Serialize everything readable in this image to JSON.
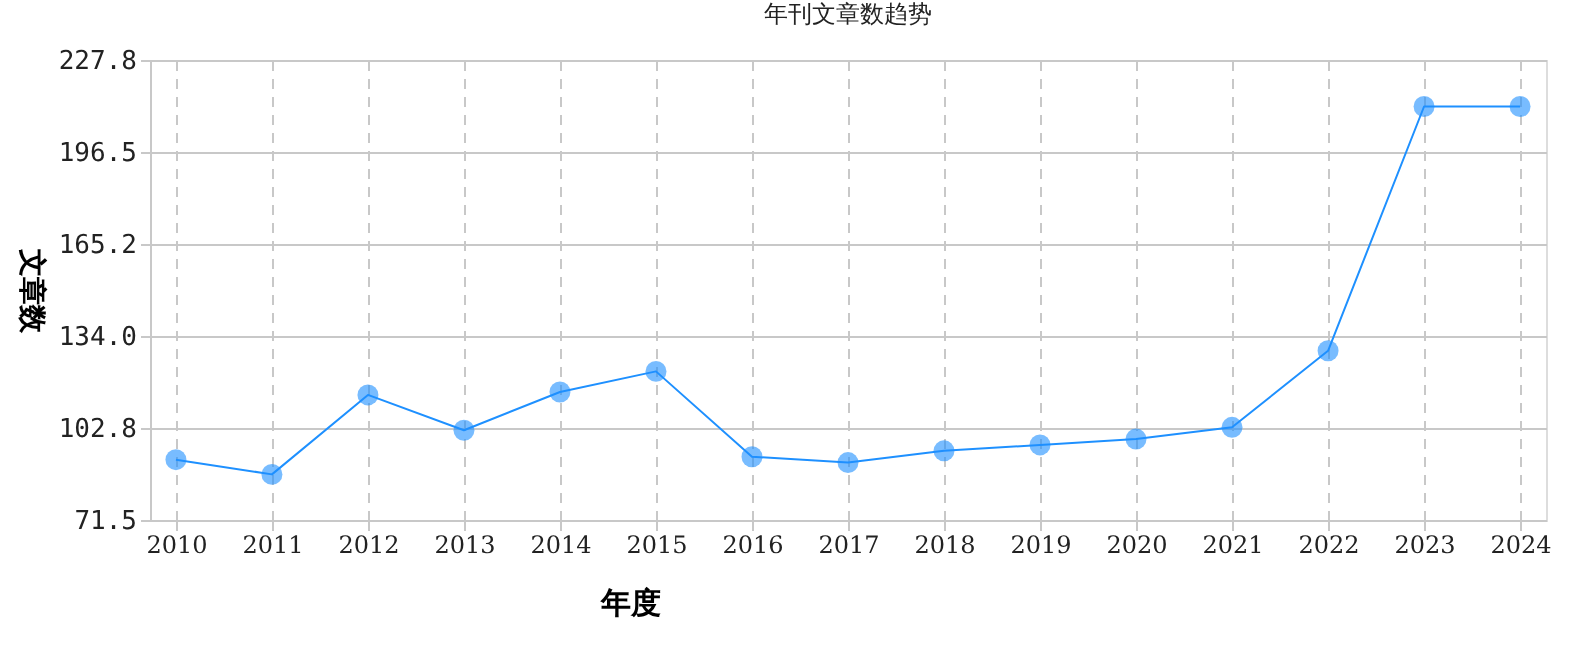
{
  "chart_data": {
    "type": "line",
    "title": "年刊文章数趋势",
    "xlabel": "年度",
    "ylabel": "文章数",
    "categories": [
      "2010",
      "2011",
      "2012",
      "2013",
      "2014",
      "2015",
      "2016",
      "2017",
      "2018",
      "2019",
      "2020",
      "2021",
      "2022",
      "2023",
      "2024"
    ],
    "series": [
      {
        "color": "#1e90ff",
        "values": [
          92,
          87,
          114,
          102,
          115,
          122,
          93,
          91,
          95,
          97,
          99,
          103,
          129,
          212,
          212
        ]
      }
    ],
    "ylim": [
      71.5,
      227.8
    ],
    "yticks": [
      71.5,
      {
        "value": 102.8,
        "label": "102.8"
      },
      {
        "value": 134.0,
        "label": "134.0"
      },
      {
        "value": 165.2,
        "label": "165.2"
      },
      {
        "value": 196.5,
        "label": "196.5"
      },
      {
        "value": 227.8,
        "label": "227.8"
      }
    ],
    "grid": true,
    "marker": "circle",
    "line_style": "solid"
  }
}
